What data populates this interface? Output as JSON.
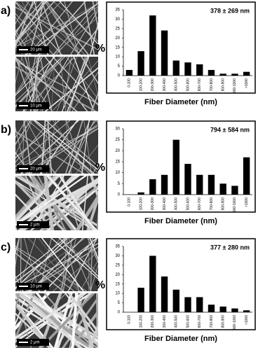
{
  "chart_data": [
    {
      "type": "bar",
      "panel_label": "a)",
      "annotation": "378 ± 269 nm",
      "x_label": "Fiber Diameter (nm)",
      "y_label": "%",
      "scale_bars": [
        "20 μm",
        "10 μm"
      ],
      "color": "#000000",
      "categories": [
        "0-100",
        "100-200",
        "200-300",
        "300-400",
        "400-500",
        "500-600",
        "600-700",
        "700-800",
        "800-900",
        "900-1000",
        ">1000"
      ],
      "values": [
        3,
        13,
        32,
        24,
        8,
        7,
        6,
        3,
        1,
        1,
        2
      ],
      "ylim": [
        0,
        35
      ],
      "yticks": [
        0,
        5,
        10,
        15,
        20,
        25,
        30,
        35
      ]
    },
    {
      "type": "bar",
      "panel_label": "b)",
      "annotation": "794 ± 584 nm",
      "x_label": "Fiber Diameter (nm)",
      "y_label": "%",
      "scale_bars": [
        "20 μm",
        "2 μm"
      ],
      "color": "#000000",
      "categories": [
        "0-100",
        "100-200",
        "200-300",
        "300-400",
        "400-500",
        "500-600",
        "600-700",
        "700-800",
        "800-900",
        "900-1000",
        ">1000"
      ],
      "values": [
        0,
        1,
        7,
        9,
        25,
        14,
        9,
        9,
        5,
        4,
        17
      ],
      "ylim": [
        0,
        30
      ],
      "yticks": [
        0,
        5,
        10,
        15,
        20,
        25,
        30
      ]
    },
    {
      "type": "bar",
      "panel_label": "c)",
      "annotation": "377 ± 280 nm",
      "x_label": "Fiber Diameter (nm)",
      "y_label": "%",
      "scale_bars": [
        "10 μm",
        "2 μm"
      ],
      "color": "#000000",
      "categories": [
        "0-100",
        "100-200",
        "200-300",
        "300-400",
        "400-500",
        "500-600",
        "600-700",
        "700-800",
        "800-900",
        "900-1000",
        ">1000"
      ],
      "values": [
        0,
        13,
        30,
        19,
        12,
        8,
        8,
        4,
        3,
        2,
        1
      ],
      "ylim": [
        0,
        35
      ],
      "yticks": [
        0,
        5,
        10,
        15,
        20,
        25,
        30,
        35
      ]
    }
  ]
}
